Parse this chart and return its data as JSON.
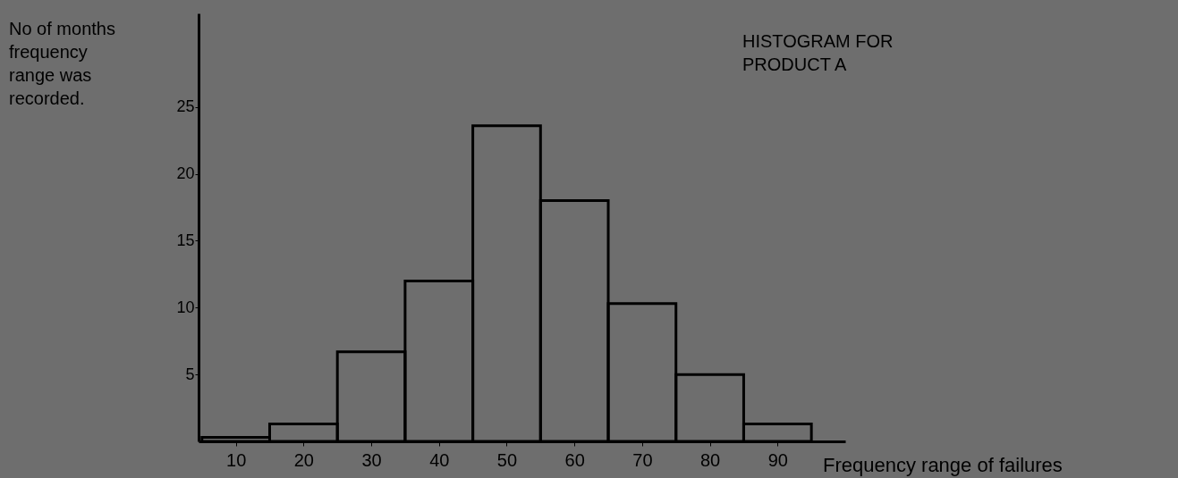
{
  "chart_data": {
    "type": "histogram",
    "title": "HISTOGRAM FOR\nPRODUCT A",
    "xlabel": "Frequency range of failures",
    "ylabel": "No of months\nfrequency\nrange was\nrecorded.",
    "bins": [
      5,
      15,
      25,
      35,
      45,
      55,
      65,
      75,
      85,
      95
    ],
    "values": [
      0.3,
      1.3,
      6.7,
      12,
      23.6,
      18,
      10.3,
      5,
      1.3
    ],
    "color": "#000000",
    "xlim": [
      4.5,
      100
    ],
    "xticks": [
      10,
      20,
      30,
      40,
      50,
      60,
      70,
      80,
      90
    ],
    "ylim": [
      0,
      32
    ],
    "yticks": [
      5,
      10,
      15,
      20,
      25
    ]
  }
}
